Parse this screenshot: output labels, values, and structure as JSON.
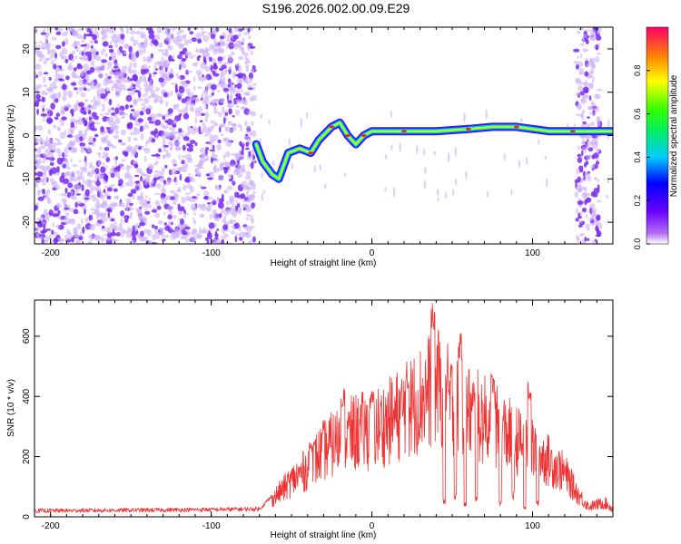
{
  "figure": {
    "title": "S196.2026.002.00.09.E29"
  },
  "colors": {
    "scatter": "#7a2cf0",
    "scatter_light": "#cbb0f7",
    "snr_line": "#ee3333",
    "axis": "#000000"
  },
  "chart_data": [
    {
      "type": "heatmap",
      "name": "spectrogram",
      "title": "S196.2026.002.00.09.E29",
      "xlabel": "Height of straight line (km)",
      "ylabel": "Frequency (Hz)",
      "xlim": [
        -210,
        150
      ],
      "ylim": [
        -25,
        25
      ],
      "xticks": [
        -200,
        -100,
        0,
        100
      ],
      "yticks": [
        -20,
        -10,
        0,
        10,
        20
      ],
      "colorbar": {
        "label": "Normalized spectral amplitude",
        "range": [
          0,
          1
        ],
        "ticks": [
          "0.0",
          "0.2",
          "0.4",
          "0.6",
          "0.8"
        ],
        "colormap": "rainbow (purple-blue-cyan-green-yellow-red)"
      },
      "regions": [
        {
          "name": "noise_left",
          "x": [
            -210,
            -73
          ],
          "y": [
            -25,
            25
          ],
          "amplitude": "low"
        },
        {
          "name": "noise_right",
          "x": [
            127,
            142
          ],
          "y": [
            -25,
            25
          ],
          "amplitude": "low"
        }
      ],
      "ridge": [
        {
          "x": -72,
          "y": -2
        },
        {
          "x": -68,
          "y": -6
        },
        {
          "x": -62,
          "y": -9
        },
        {
          "x": -58,
          "y": -10
        },
        {
          "x": -52,
          "y": -4
        },
        {
          "x": -45,
          "y": -3
        },
        {
          "x": -38,
          "y": -4
        },
        {
          "x": -33,
          "y": -1
        },
        {
          "x": -25,
          "y": 2
        },
        {
          "x": -20,
          "y": 3
        },
        {
          "x": -15,
          "y": 0
        },
        {
          "x": -10,
          "y": -2
        },
        {
          "x": -5,
          "y": 0
        },
        {
          "x": 0,
          "y": 1
        },
        {
          "x": 20,
          "y": 1
        },
        {
          "x": 40,
          "y": 1
        },
        {
          "x": 60,
          "y": 1.5
        },
        {
          "x": 75,
          "y": 2
        },
        {
          "x": 90,
          "y": 2
        },
        {
          "x": 110,
          "y": 1
        },
        {
          "x": 125,
          "y": 1
        },
        {
          "x": 150,
          "y": 1
        }
      ]
    },
    {
      "type": "line",
      "name": "snr",
      "xlabel": "Height of straight line (km)",
      "ylabel": "SNR (10 * v/v)",
      "xlim": [
        -210,
        150
      ],
      "ylim": [
        0,
        720
      ],
      "xticks": [
        -200,
        -100,
        0,
        100
      ],
      "yticks": [
        0,
        200,
        400,
        600
      ],
      "series": [
        {
          "name": "SNR",
          "envelope": [
            {
              "x": -210,
              "y": 20
            },
            {
              "x": -150,
              "y": 22
            },
            {
              "x": -100,
              "y": 24
            },
            {
              "x": -70,
              "y": 26
            },
            {
              "x": -60,
              "y": 80
            },
            {
              "x": -50,
              "y": 140
            },
            {
              "x": -40,
              "y": 190
            },
            {
              "x": -30,
              "y": 260
            },
            {
              "x": -20,
              "y": 300
            },
            {
              "x": -10,
              "y": 330
            },
            {
              "x": 0,
              "y": 340
            },
            {
              "x": 10,
              "y": 370
            },
            {
              "x": 20,
              "y": 410
            },
            {
              "x": 30,
              "y": 460
            },
            {
              "x": 40,
              "y": 520
            },
            {
              "x": 50,
              "y": 440
            },
            {
              "x": 60,
              "y": 410
            },
            {
              "x": 70,
              "y": 380
            },
            {
              "x": 80,
              "y": 340
            },
            {
              "x": 90,
              "y": 300
            },
            {
              "x": 100,
              "y": 260
            },
            {
              "x": 110,
              "y": 220
            },
            {
              "x": 120,
              "y": 170
            },
            {
              "x": 128,
              "y": 90
            },
            {
              "x": 135,
              "y": 40
            },
            {
              "x": 145,
              "y": 55
            },
            {
              "x": 150,
              "y": 30
            }
          ],
          "peaks": [
            {
              "x": -38,
              "y": 250
            },
            {
              "x": -18,
              "y": 430
            },
            {
              "x": 0,
              "y": 420
            },
            {
              "x": 22,
              "y": 480
            },
            {
              "x": 38,
              "y": 710
            },
            {
              "x": 55,
              "y": 610
            },
            {
              "x": 75,
              "y": 480
            },
            {
              "x": 98,
              "y": 450
            }
          ],
          "dips": [
            {
              "x": 45,
              "y": 50
            },
            {
              "x": 52,
              "y": 70
            },
            {
              "x": 58,
              "y": 40
            },
            {
              "x": 65,
              "y": 60
            },
            {
              "x": 80,
              "y": 45
            },
            {
              "x": 88,
              "y": 70
            },
            {
              "x": 95,
              "y": 30
            },
            {
              "x": 103,
              "y": 45
            }
          ]
        }
      ]
    }
  ]
}
